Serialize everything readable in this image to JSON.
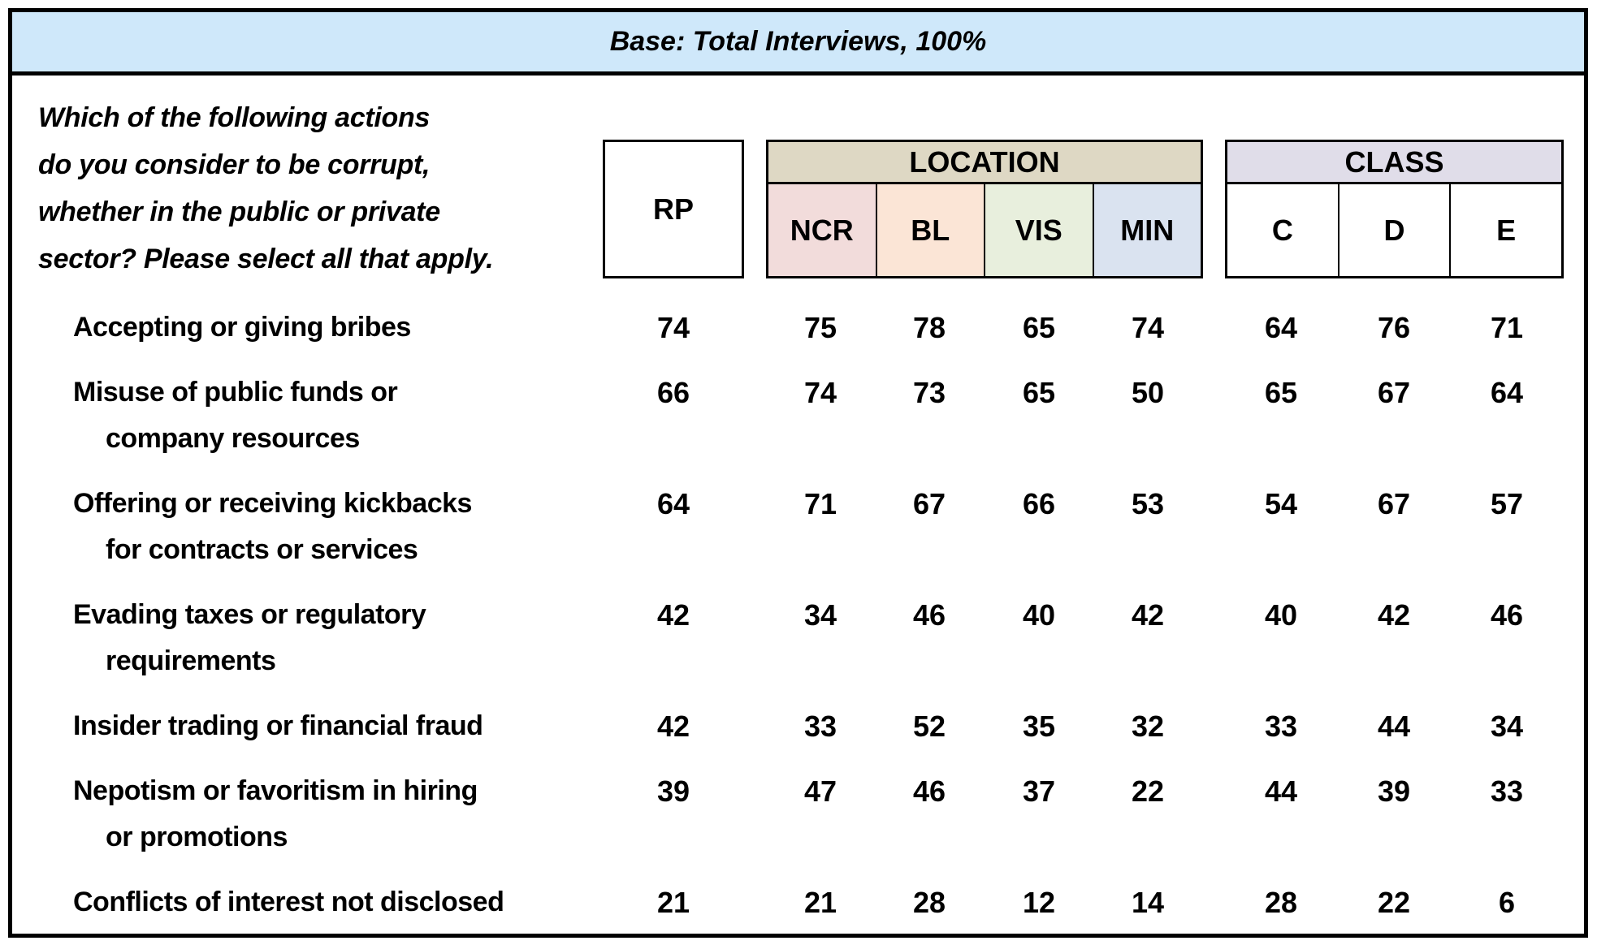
{
  "base_bar": {
    "text": "Base: Total Interviews, 100%"
  },
  "question": "Which of the following actions\ndo you consider to be corrupt,\nwhether in the public or private\nsector? Please select all that apply.",
  "columns": {
    "rp": "RP",
    "location": {
      "label": "LOCATION",
      "cols": [
        "NCR",
        "BL",
        "VIS",
        "MIN"
      ]
    },
    "class": {
      "label": "CLASS",
      "cols": [
        "C",
        "D",
        "E"
      ]
    }
  },
  "table": {
    "rows": [
      {
        "lines": [
          "Accepting or giving bribes"
        ],
        "values": [
          74,
          75,
          78,
          65,
          74,
          64,
          76,
          71
        ]
      },
      {
        "lines": [
          "Misuse of public funds or",
          "company resources"
        ],
        "values": [
          66,
          74,
          73,
          65,
          50,
          65,
          67,
          64
        ]
      },
      {
        "lines": [
          "Offering or receiving kickbacks",
          "for contracts or services"
        ],
        "values": [
          64,
          71,
          67,
          66,
          53,
          54,
          67,
          57
        ]
      },
      {
        "lines": [
          "Evading taxes or regulatory",
          "requirements"
        ],
        "values": [
          42,
          34,
          46,
          40,
          42,
          40,
          42,
          46
        ]
      },
      {
        "lines": [
          "Insider trading or financial fraud"
        ],
        "values": [
          42,
          33,
          52,
          35,
          32,
          33,
          44,
          34
        ]
      },
      {
        "lines": [
          "Nepotism or favoritism in hiring",
          "or promotions"
        ],
        "values": [
          39,
          47,
          46,
          37,
          22,
          44,
          39,
          33
        ]
      },
      {
        "lines": [
          "Conflicts of interest not disclosed"
        ],
        "values": [
          21,
          21,
          28,
          12,
          14,
          28,
          22,
          6
        ]
      }
    ]
  },
  "colors": {
    "bar_bg": "#CFE8FA",
    "location_bg": "#DED8C4",
    "class_bg": "#E0DDE9",
    "ncr_bg": "#F2DCDB",
    "bl_bg": "#FBE5D6",
    "vis_bg": "#E8EFDD",
    "min_bg": "#DAE3F0"
  },
  "chart_data": {
    "type": "table",
    "title": "Base: Total Interviews, 100%",
    "question": "Which of the following actions do you consider to be corrupt, whether in the public or private sector? Please select all that apply.",
    "columns": [
      "RP",
      "NCR",
      "BL",
      "VIS",
      "MIN",
      "C",
      "D",
      "E"
    ],
    "column_groups": [
      {
        "label": "LOCATION",
        "columns": [
          "NCR",
          "BL",
          "VIS",
          "MIN"
        ]
      },
      {
        "label": "CLASS",
        "columns": [
          "C",
          "D",
          "E"
        ]
      }
    ],
    "rows": [
      {
        "label": "Accepting or giving bribes",
        "values": [
          74,
          75,
          78,
          65,
          74,
          64,
          76,
          71
        ]
      },
      {
        "label": "Misuse of public funds or company resources",
        "values": [
          66,
          74,
          73,
          65,
          50,
          65,
          67,
          64
        ]
      },
      {
        "label": "Offering or receiving kickbacks for contracts or services",
        "values": [
          64,
          71,
          67,
          66,
          53,
          54,
          67,
          57
        ]
      },
      {
        "label": "Evading taxes or regulatory requirements",
        "values": [
          42,
          34,
          46,
          40,
          42,
          40,
          42,
          46
        ]
      },
      {
        "label": "Insider trading or financial fraud",
        "values": [
          42,
          33,
          52,
          35,
          32,
          33,
          44,
          34
        ]
      },
      {
        "label": "Nepotism or favoritism in hiring or promotions",
        "values": [
          39,
          47,
          46,
          37,
          22,
          44,
          39,
          33
        ]
      },
      {
        "label": "Conflicts of interest not disclosed",
        "values": [
          21,
          21,
          28,
          12,
          14,
          28,
          22,
          6
        ]
      }
    ]
  }
}
